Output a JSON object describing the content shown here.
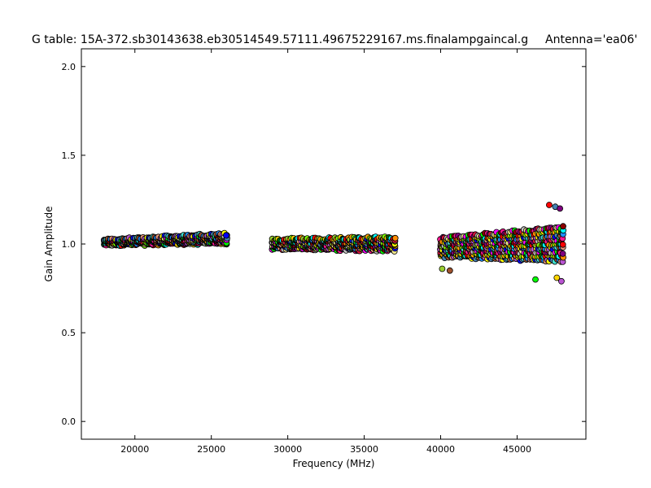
{
  "chart_data": {
    "type": "scatter",
    "title": "G table: 15A-372.sb30143638.eb30514549.57111.49675229167.ms.finalampgaincal.g",
    "subtitle": "Antenna='ea06'",
    "xlabel": "Frequency (MHz)",
    "ylabel": "Gain Amplitude",
    "xlim": [
      16500,
      49500
    ],
    "ylim": [
      -0.1,
      2.1
    ],
    "xticks": [
      20000,
      25000,
      30000,
      35000,
      40000,
      45000
    ],
    "yticks": [
      0.0,
      0.5,
      1.0,
      1.5,
      2.0
    ],
    "xtick_labels": [
      "20000",
      "25000",
      "30000",
      "35000",
      "40000",
      "45000"
    ],
    "ytick_labels": [
      "0.0",
      "0.5",
      "1.0",
      "1.5",
      "2.0"
    ],
    "grid": false,
    "legend": "none",
    "marker": "circle",
    "groups": [
      {
        "x_range": [
          18000,
          26000
        ],
        "y_center": [
          1.01,
          1.03
        ],
        "spread": [
          0.03,
          0.05
        ]
      },
      {
        "x_range": [
          29000,
          37000
        ],
        "y_center": [
          1.0,
          1.0
        ],
        "spread": [
          0.05,
          0.07
        ]
      },
      {
        "x_range": [
          40000,
          48000
        ],
        "y_center": [
          0.98,
          1.0
        ],
        "spread": [
          0.1,
          0.19
        ]
      }
    ],
    "outliers": [
      {
        "x": 47100,
        "y": 1.22
      },
      {
        "x": 47500,
        "y": 1.21
      },
      {
        "x": 47800,
        "y": 1.2
      },
      {
        "x": 47600,
        "y": 0.81
      },
      {
        "x": 47900,
        "y": 0.79
      },
      {
        "x": 46200,
        "y": 0.8
      },
      {
        "x": 40100,
        "y": 0.86
      },
      {
        "x": 40600,
        "y": 0.85
      }
    ],
    "palette": [
      "#00ffff",
      "#ff00ff",
      "#ffff00",
      "#ff0000",
      "#00ff00",
      "#0000ff",
      "#ff8c00",
      "#8b0000",
      "#4682b4",
      "#9acd32",
      "#ff1493",
      "#40e0d0",
      "#ffa500",
      "#800080",
      "#a0522d",
      "#7fff00",
      "#dc143c",
      "#1e90ff",
      "#ffd700",
      "#c0c0c0",
      "#e9967a",
      "#006400",
      "#f0e68c",
      "#ba55d3"
    ]
  }
}
